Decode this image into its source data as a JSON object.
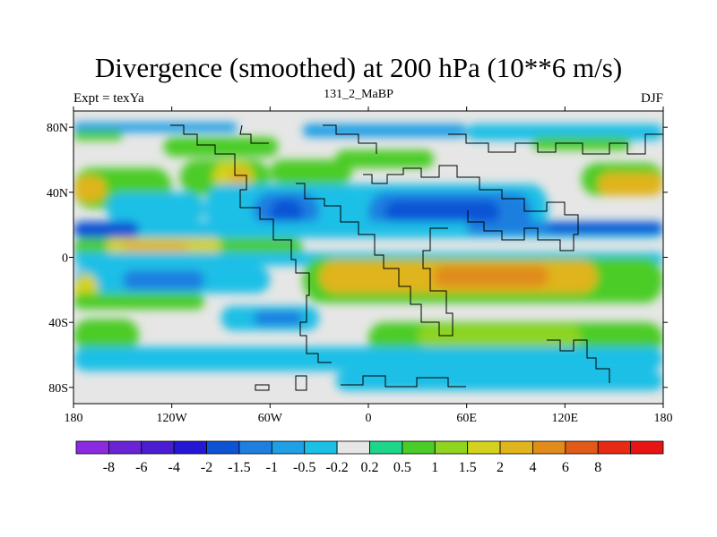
{
  "title": "Divergence (smoothed) at 200 hPa (10**6 m/s)",
  "subtitle_left": "Expt = texYa",
  "subtitle_center": "131_2_MaBP",
  "subtitle_right": "DJF",
  "map": {
    "type": "filled-contour-map",
    "projection": "cylindrical-equidistant",
    "lon_range": [
      -180,
      180
    ],
    "lat_range": [
      -90,
      90
    ],
    "background_color": "#e6e6e6",
    "coastline_color": "#000000",
    "x_ticks": [
      {
        "value": -180,
        "label": "180"
      },
      {
        "value": -120,
        "label": "120W"
      },
      {
        "value": -60,
        "label": "60W"
      },
      {
        "value": 0,
        "label": "0"
      },
      {
        "value": 60,
        "label": "60E"
      },
      {
        "value": 120,
        "label": "120E"
      },
      {
        "value": 180,
        "label": "180"
      }
    ],
    "y_ticks": [
      {
        "value": 80,
        "label": "80N"
      },
      {
        "value": 40,
        "label": "40N"
      },
      {
        "value": 0,
        "label": "0"
      },
      {
        "value": -40,
        "label": "40S"
      },
      {
        "value": -80,
        "label": "80S"
      }
    ],
    "bands": [
      {
        "lat": [
          77,
          83
        ],
        "lon": [
          -180,
          -80
        ],
        "level": -1
      },
      {
        "lat": [
          74,
          82
        ],
        "lon": [
          -40,
          60
        ],
        "level": -1
      },
      {
        "lat": [
          72,
          82
        ],
        "lon": [
          60,
          180
        ],
        "level": -0.5
      },
      {
        "lat": [
          72,
          78
        ],
        "lon": [
          -180,
          -150
        ],
        "level": 0.5
      },
      {
        "lat": [
          62,
          74
        ],
        "lon": [
          -125,
          -55
        ],
        "level": 0.5
      },
      {
        "lat": [
          55,
          66
        ],
        "lon": [
          -20,
          40
        ],
        "level": 0.5
      },
      {
        "lat": [
          66,
          74
        ],
        "lon": [
          100,
          160
        ],
        "level": 0.5
      },
      {
        "lat": [
          30,
          55
        ],
        "lon": [
          -180,
          -120
        ],
        "level": 0.5
      },
      {
        "lat": [
          34,
          50
        ],
        "lon": [
          -180,
          -160
        ],
        "level": 2
      },
      {
        "lat": [
          38,
          60
        ],
        "lon": [
          -115,
          -60
        ],
        "level": 0.5
      },
      {
        "lat": [
          42,
          58
        ],
        "lon": [
          -95,
          -70
        ],
        "level": 1.5
      },
      {
        "lat": [
          45,
          55
        ],
        "lon": [
          -85,
          -72
        ],
        "level": 2
      },
      {
        "lat": [
          45,
          60
        ],
        "lon": [
          -60,
          -10
        ],
        "level": 0.5
      },
      {
        "lat": [
          38,
          58
        ],
        "lon": [
          130,
          180
        ],
        "level": 0.5
      },
      {
        "lat": [
          38,
          52
        ],
        "lon": [
          140,
          180
        ],
        "level": 2
      },
      {
        "lat": [
          20,
          40
        ],
        "lon": [
          -160,
          -100
        ],
        "level": -0.5
      },
      {
        "lat": [
          15,
          45
        ],
        "lon": [
          -100,
          110
        ],
        "level": -0.5
      },
      {
        "lat": [
          18,
          40
        ],
        "lon": [
          -70,
          -30
        ],
        "level": -1.5
      },
      {
        "lat": [
          18,
          36
        ],
        "lon": [
          -60,
          -40
        ],
        "level": -2
      },
      {
        "lat": [
          15,
          40
        ],
        "lon": [
          0,
          100
        ],
        "level": -1.5
      },
      {
        "lat": [
          20,
          35
        ],
        "lon": [
          10,
          80
        ],
        "level": -2
      },
      {
        "lat": [
          12,
          22
        ],
        "lon": [
          -180,
          180
        ],
        "level": -0.5
      },
      {
        "lat": [
          12,
          22
        ],
        "lon": [
          -180,
          -140
        ],
        "level": -2
      },
      {
        "lat": [
          14,
          22
        ],
        "lon": [
          60,
          180
        ],
        "level": -1.5
      },
      {
        "lat": [
          15,
          21
        ],
        "lon": [
          110,
          180
        ],
        "level": -2
      },
      {
        "lat": [
          0,
          12
        ],
        "lon": [
          -180,
          -40
        ],
        "level": 0.5
      },
      {
        "lat": [
          2,
          12
        ],
        "lon": [
          -160,
          -90
        ],
        "level": 1.5
      },
      {
        "lat": [
          4,
          10
        ],
        "lon": [
          -150,
          -110
        ],
        "level": 2
      },
      {
        "lat": [
          -5,
          3
        ],
        "lon": [
          -180,
          180
        ],
        "level": -0.5
      },
      {
        "lat": [
          -22,
          -5
        ],
        "lon": [
          -180,
          -60
        ],
        "level": -0.5
      },
      {
        "lat": [
          -20,
          -8
        ],
        "lon": [
          -150,
          -100
        ],
        "level": -1.5
      },
      {
        "lat": [
          -30,
          -10
        ],
        "lon": [
          -180,
          -165
        ],
        "level": 1.5
      },
      {
        "lat": [
          -28,
          0
        ],
        "lon": [
          -40,
          180
        ],
        "level": 0.5
      },
      {
        "lat": [
          -22,
          -2
        ],
        "lon": [
          -30,
          140
        ],
        "level": 2
      },
      {
        "lat": [
          -18,
          -5
        ],
        "lon": [
          40,
          110
        ],
        "level": 4
      },
      {
        "lat": [
          -32,
          -22
        ],
        "lon": [
          -180,
          -100
        ],
        "level": 0.5
      },
      {
        "lat": [
          -45,
          -30
        ],
        "lon": [
          -90,
          -30
        ],
        "level": -0.5
      },
      {
        "lat": [
          -42,
          -33
        ],
        "lon": [
          -70,
          -40
        ],
        "level": -1.5
      },
      {
        "lat": [
          -58,
          -38
        ],
        "lon": [
          -180,
          -140
        ],
        "level": 0.5
      },
      {
        "lat": [
          -60,
          -40
        ],
        "lon": [
          0,
          180
        ],
        "level": 0.5
      },
      {
        "lat": [
          -55,
          -42
        ],
        "lon": [
          30,
          130
        ],
        "level": 1
      },
      {
        "lat": [
          -70,
          -55
        ],
        "lon": [
          -180,
          180
        ],
        "level": -0.5
      },
      {
        "lat": [
          -82,
          -70
        ],
        "lon": [
          -20,
          180
        ],
        "level": -0.5
      }
    ]
  },
  "colorbar": {
    "colors": [
      "#8a2be2",
      "#6a24d6",
      "#4a1ed0",
      "#2418d6",
      "#0f52d6",
      "#1e7fe0",
      "#1e9fe6",
      "#1cbfe6",
      "#e6e6e6",
      "#1ed68a",
      "#4ccc28",
      "#8ed420",
      "#d4d21e",
      "#e0b41c",
      "#e08c1a",
      "#e05a18",
      "#e62a14",
      "#e61414"
    ],
    "levels": [
      "-8",
      "-6",
      "-4",
      "-2",
      "-1.5",
      "-1",
      "-0.5",
      "-0.2",
      "0.2",
      "0.5",
      "1",
      "1.5",
      "2",
      "4",
      "6",
      "8"
    ],
    "level_values": [
      -8,
      -6,
      -4,
      -2,
      -1.5,
      -1,
      -0.5,
      -0.2,
      0.2,
      0.5,
      1,
      1.5,
      2,
      4,
      6,
      8
    ]
  }
}
